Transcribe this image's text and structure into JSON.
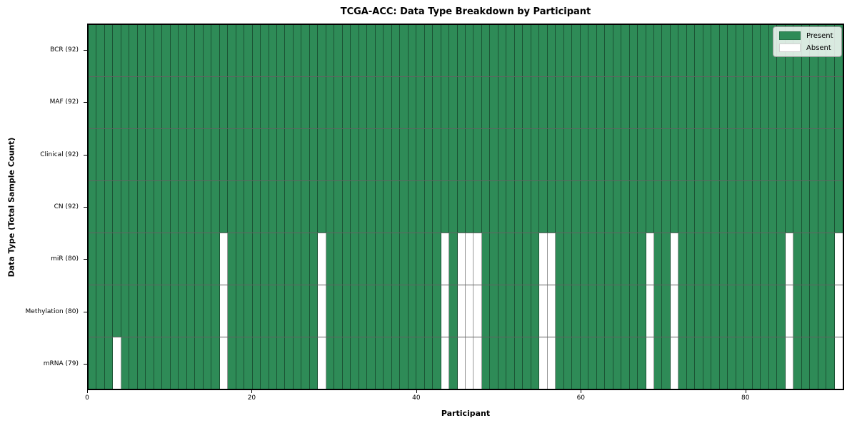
{
  "title": "TCGA-ACC: Data Type Breakdown by Participant",
  "xlabel": "Participant",
  "ylabel": "Data Type (Total Sample Count)",
  "legend": {
    "present_label": "Present",
    "absent_label": "Absent"
  },
  "colors": {
    "present": "#2e8b57",
    "absent": "#ffffff",
    "cell_edge": "rgba(0,0,0,0.40)",
    "row_divider": "rgba(45,45,45,0.75)",
    "frame": "#000000"
  },
  "chart_data": {
    "type": "heatmap",
    "title": "TCGA-ACC: Data Type Breakdown by Participant",
    "xlabel": "Participant",
    "ylabel": "Data Type (Total Sample Count)",
    "grid": true,
    "legend_position": "upper right",
    "legend": [
      {
        "label": "Present",
        "color": "#2e8b57"
      },
      {
        "label": "Absent",
        "color": "#ffffff"
      }
    ],
    "n_participants": 92,
    "x_ticks": [
      0,
      20,
      40,
      60,
      80
    ],
    "xlim": [
      0,
      92
    ],
    "rows": [
      {
        "label": "BCR (92)",
        "data_type": "BCR",
        "present_count": 92,
        "absent_participants": []
      },
      {
        "label": "MAF (92)",
        "data_type": "MAF",
        "present_count": 92,
        "absent_participants": []
      },
      {
        "label": "Clinical (92)",
        "data_type": "Clinical",
        "present_count": 92,
        "absent_participants": []
      },
      {
        "label": "CN (92)",
        "data_type": "CN",
        "present_count": 92,
        "absent_participants": []
      },
      {
        "label": "miR (80)",
        "data_type": "miR",
        "present_count": 80,
        "absent_participants": [
          16,
          28,
          43,
          45,
          46,
          47,
          55,
          56,
          68,
          71,
          85,
          91
        ]
      },
      {
        "label": "Methylation (80)",
        "data_type": "Methylation",
        "present_count": 80,
        "absent_participants": [
          16,
          28,
          43,
          45,
          46,
          47,
          55,
          56,
          68,
          71,
          85,
          91
        ]
      },
      {
        "label": "mRNA (79)",
        "data_type": "mRNA",
        "present_count": 79,
        "absent_participants": [
          3,
          16,
          28,
          43,
          45,
          46,
          47,
          55,
          56,
          68,
          71,
          85,
          91
        ]
      }
    ]
  }
}
